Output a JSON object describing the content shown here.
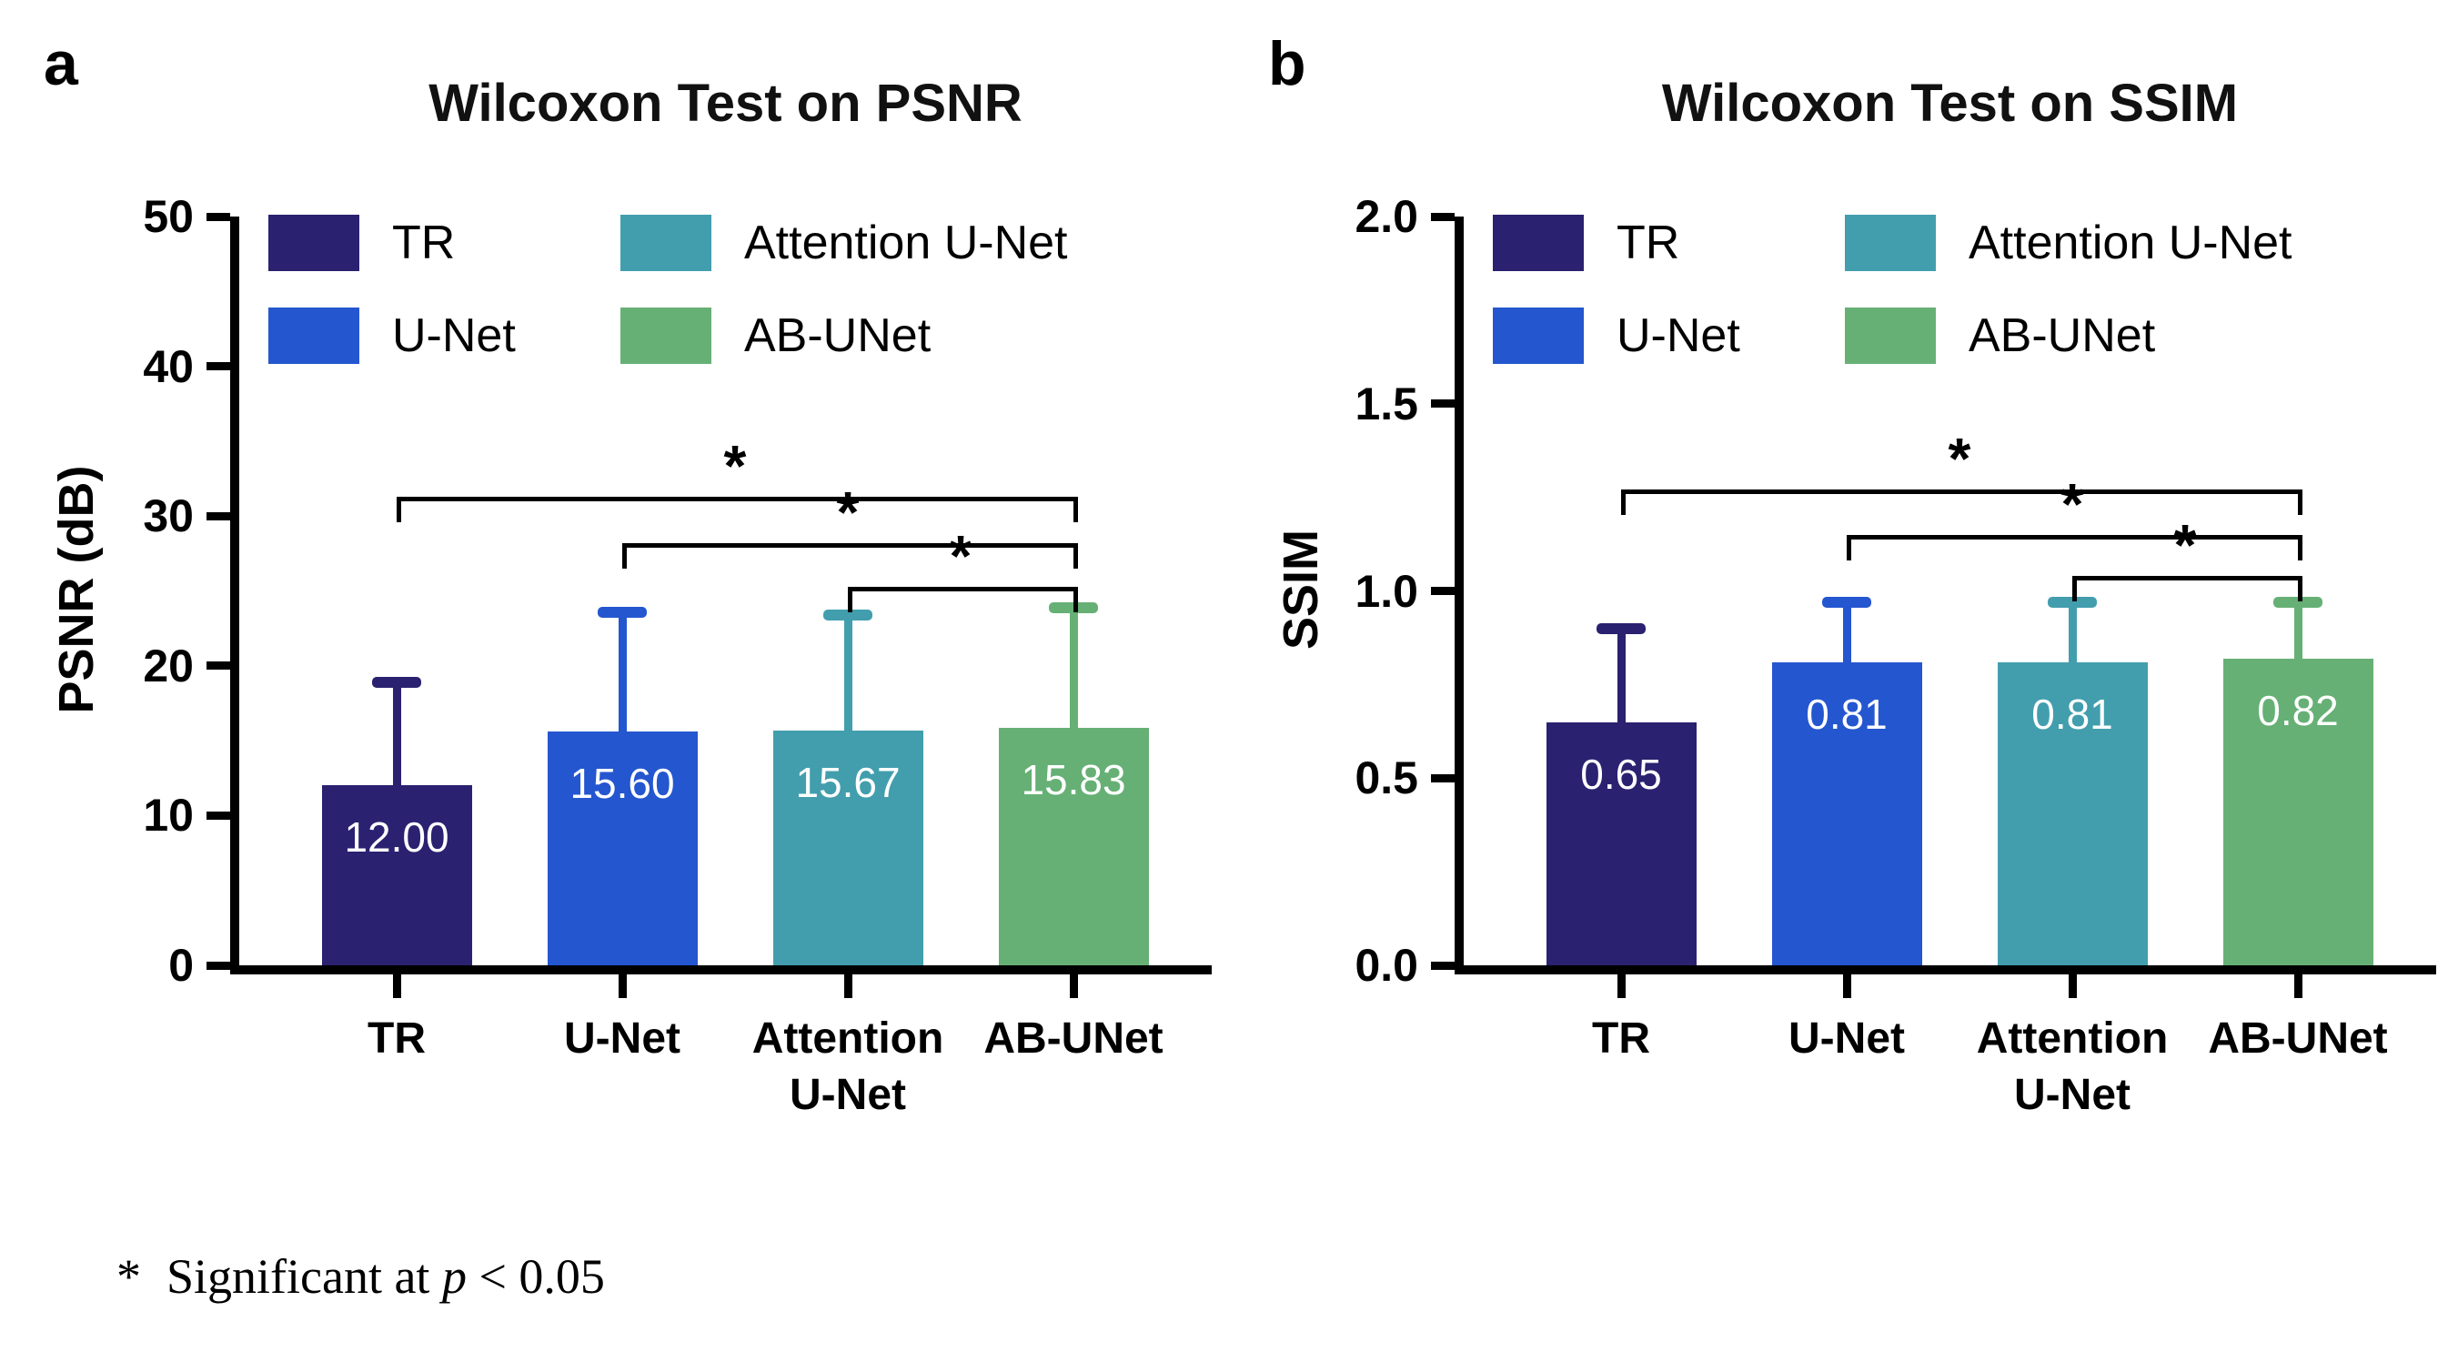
{
  "figure": {
    "footnote": {
      "symbol": "*",
      "text": "Significant at ",
      "p_var": "p",
      "condition": " < 0.05"
    }
  },
  "chart_data": [
    {
      "id": "psnr",
      "panel_letter": "a",
      "type": "bar",
      "title": "Wilcoxon Test on PSNR",
      "ylabel": "PSNR (dB)",
      "xlabel": "",
      "ylim": [
        0,
        50
      ],
      "yticks": [
        0,
        10,
        20,
        30,
        40,
        50
      ],
      "ytick_labels": [
        "0",
        "10",
        "20",
        "30",
        "40",
        "50"
      ],
      "categories": [
        "TR",
        "U-Net",
        "Attention U-Net",
        "AB-UNet"
      ],
      "xtick_labels": [
        [
          "TR"
        ],
        [
          "U-Net"
        ],
        [
          "Attention",
          "U-Net"
        ],
        [
          "AB-UNet"
        ]
      ],
      "values": [
        12.0,
        15.6,
        15.67,
        15.83
      ],
      "value_labels": [
        "12.00",
        "15.60",
        "15.67",
        "15.83"
      ],
      "error_top": [
        18.9,
        23.6,
        23.4,
        23.9
      ],
      "colors": [
        "#2a2170",
        "#2456cf",
        "#429ead",
        "#66b075"
      ],
      "legend": [
        "TR",
        "U-Net",
        "Attention U-Net",
        "AB-UNet"
      ],
      "legend_position": "top-left-inside",
      "grid": false,
      "brackets": [
        {
          "from": 0,
          "to": 3,
          "y": 31.3,
          "label": "*"
        },
        {
          "from": 1,
          "to": 3,
          "y": 28.2,
          "label": "*"
        },
        {
          "from": 2,
          "to": 3,
          "y": 25.3,
          "label": "*"
        }
      ]
    },
    {
      "id": "ssim",
      "panel_letter": "b",
      "type": "bar",
      "title": "Wilcoxon Test on SSIM",
      "ylabel": "SSIM",
      "xlabel": "",
      "ylim": [
        0,
        2
      ],
      "yticks": [
        0,
        0.5,
        1.0,
        1.5,
        2.0
      ],
      "ytick_labels": [
        "0.0",
        "0.5",
        "1.0",
        "1.5",
        "2.0"
      ],
      "categories": [
        "TR",
        "U-Net",
        "Attention U-Net",
        "AB-UNet"
      ],
      "xtick_labels": [
        [
          "TR"
        ],
        [
          "U-Net"
        ],
        [
          "Attention",
          "U-Net"
        ],
        [
          "AB-UNet"
        ]
      ],
      "values": [
        0.65,
        0.81,
        0.81,
        0.82
      ],
      "value_labels": [
        "0.65",
        "0.81",
        "0.81",
        "0.82"
      ],
      "error_top": [
        0.9,
        0.97,
        0.97,
        0.97
      ],
      "colors": [
        "#2a2170",
        "#2456cf",
        "#429ead",
        "#66b075"
      ],
      "legend": [
        "TR",
        "U-Net",
        "Attention U-Net",
        "AB-UNet"
      ],
      "legend_position": "top-left-inside",
      "grid": false,
      "brackets": [
        {
          "from": 0,
          "to": 3,
          "y": 1.27,
          "label": "*"
        },
        {
          "from": 1,
          "to": 3,
          "y": 1.15,
          "label": "*"
        },
        {
          "from": 2,
          "to": 3,
          "y": 1.04,
          "label": "*"
        }
      ]
    }
  ]
}
